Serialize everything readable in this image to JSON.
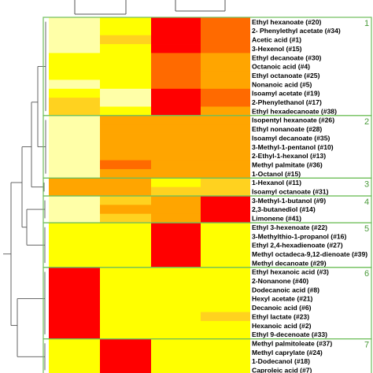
{
  "chart_data": {
    "type": "heatmap",
    "columns": [
      "",
      "",
      "",
      ""
    ],
    "color_scale": {
      "low": "#ffff00",
      "mid_low": "#ffd21f",
      "mid": "#ffa500",
      "mid_high": "#ff6a00",
      "high": "#ff0000",
      "pale": "#ffffa8"
    },
    "cluster_border_color": "#6fbf5a",
    "rows": [
      {
        "label": "Ethyl hexanoate (#20)",
        "values": [
          0.1,
          0.1,
          0.95,
          0.8
        ]
      },
      {
        "label": "2- Phenylethyl acetate (#34)",
        "values": [
          0.1,
          0.1,
          0.95,
          0.8
        ]
      },
      {
        "label": "Acetic acid (#1)",
        "values": [
          0.1,
          0.35,
          0.95,
          0.8
        ]
      },
      {
        "label": "3-Hexenol (#15)",
        "values": [
          0.1,
          0.1,
          0.95,
          0.8
        ]
      },
      {
        "label": "Ethyl decanoate (#30)",
        "values": [
          0.05,
          0.1,
          0.8,
          0.6
        ]
      },
      {
        "label": "Octanoic acid (#4)",
        "values": [
          0.05,
          0.1,
          0.8,
          0.6
        ]
      },
      {
        "label": "Ethyl octanoate (#25)",
        "values": [
          0.05,
          0.1,
          0.8,
          0.6
        ]
      },
      {
        "label": "Nonanoic acid (#5)",
        "values": [
          0.1,
          0.1,
          0.8,
          0.6
        ]
      },
      {
        "label": "Isoamyl acetate (#19)",
        "values": [
          0.1,
          0.05,
          0.95,
          0.8
        ]
      },
      {
        "label": "2-Phenylethanol (#17)",
        "values": [
          0.3,
          0.05,
          0.95,
          0.8
        ]
      },
      {
        "label": "Ethyl hexadecanoate (#38)",
        "values": [
          0.3,
          0.1,
          0.95,
          0.6
        ]
      },
      {
        "label": "Isopentyl hexanoate (#26)",
        "values": [
          0.1,
          0.5,
          0.5,
          0.5
        ]
      },
      {
        "label": "Ethyl nonanoate (#28)",
        "values": [
          0.1,
          0.5,
          0.5,
          0.5
        ]
      },
      {
        "label": "Isoamyl decanoate (#35)",
        "values": [
          0.1,
          0.5,
          0.5,
          0.5
        ]
      },
      {
        "label": "3-Methyl-1-pentanol (#10)",
        "values": [
          0.1,
          0.5,
          0.5,
          0.5
        ]
      },
      {
        "label": "2-Ethyl-1-hexanol (#13)",
        "values": [
          0.1,
          0.5,
          0.5,
          0.5
        ]
      },
      {
        "label": "Methyl palmitate (#36)",
        "values": [
          0.1,
          0.7,
          0.5,
          0.5
        ]
      },
      {
        "label": "1-Octanol (#15)",
        "values": [
          0.1,
          0.5,
          0.5,
          0.5
        ]
      },
      {
        "label": "1-Hexanol (#11)",
        "values": [
          0.5,
          0.5,
          0.05,
          0.3
        ]
      },
      {
        "label": "Isoamyl octanoate (#31)",
        "values": [
          0.5,
          0.5,
          0.3,
          0.3
        ]
      },
      {
        "label": "3-Methyl-1-butanol (#9)",
        "values": [
          0.1,
          0.3,
          0.5,
          0.95
        ]
      },
      {
        "label": "2,3-butanediol (#14)",
        "values": [
          0.1,
          0.5,
          0.5,
          0.95
        ]
      },
      {
        "label": "Limonene (#41)",
        "values": [
          0.1,
          0.3,
          0.5,
          0.95
        ]
      },
      {
        "label": "Ethyl 3-hexenoate (#22)",
        "values": [
          0.1,
          0.1,
          0.95,
          0.1
        ]
      },
      {
        "label": "3-Methylthio-1-propanol (#16)",
        "values": [
          0.1,
          0.1,
          0.95,
          0.1
        ]
      },
      {
        "label": "Ethyl 2,4-hexadienoate (#27)",
        "values": [
          0.1,
          0.1,
          0.95,
          0.1
        ]
      },
      {
        "label": "Methyl octadeca-9,12-dienoate (#39)",
        "values": [
          0.1,
          0.1,
          0.95,
          0.1
        ]
      },
      {
        "label": "Methyl decanoate (#29)",
        "values": [
          0.1,
          0.1,
          0.95,
          0.1
        ]
      },
      {
        "label": "Ethyl hexanoic acid (#3)",
        "values": [
          0.95,
          0.1,
          0.1,
          0.1
        ]
      },
      {
        "label": "2-Nonanone (#40)",
        "values": [
          0.95,
          0.1,
          0.1,
          0.1
        ]
      },
      {
        "label": "Dodecanoic acid (#8)",
        "values": [
          0.95,
          0.1,
          0.1,
          0.1
        ]
      },
      {
        "label": "Hexyl acetate (#21)",
        "values": [
          0.95,
          0.1,
          0.1,
          0.1
        ]
      },
      {
        "label": "Decanoic acid (#6)",
        "values": [
          0.95,
          0.1,
          0.1,
          0.1
        ]
      },
      {
        "label": "Ethyl lactate (#23)",
        "values": [
          0.95,
          0.1,
          0.1,
          0.35
        ]
      },
      {
        "label": "Hexanoic acid (#2)",
        "values": [
          0.95,
          0.1,
          0.1,
          0.1
        ]
      },
      {
        "label": "Ethyl 9-decenoate (#33)",
        "values": [
          0.95,
          0.1,
          0.1,
          0.1
        ]
      },
      {
        "label": "Methyl palmitoleate (#37)",
        "values": [
          0.1,
          0.95,
          0.1,
          0.1
        ]
      },
      {
        "label": "Methyl caprylate (#24)",
        "values": [
          0.1,
          0.95,
          0.1,
          0.1
        ]
      },
      {
        "label": "1-Dodecanol (#18)",
        "values": [
          0.1,
          0.95,
          0.1,
          0.1
        ]
      },
      {
        "label": "Caproleic acid (#7)",
        "values": [
          0.1,
          0.95,
          0.1,
          0.1
        ]
      }
    ],
    "clusters": [
      {
        "label": "1",
        "start": 0,
        "end": 10
      },
      {
        "label": "2",
        "start": 11,
        "end": 17
      },
      {
        "label": "3",
        "start": 18,
        "end": 19
      },
      {
        "label": "4",
        "start": 20,
        "end": 22
      },
      {
        "label": "5",
        "start": 23,
        "end": 27
      },
      {
        "label": "6",
        "start": 28,
        "end": 35
      },
      {
        "label": "7",
        "start": 36,
        "end": 39
      }
    ],
    "pale_cells": [
      [
        0,
        0
      ],
      [
        1,
        0
      ],
      [
        2,
        0
      ],
      [
        3,
        0
      ],
      [
        7,
        0
      ],
      [
        8,
        1
      ],
      [
        9,
        1
      ],
      [
        11,
        0
      ],
      [
        12,
        0
      ],
      [
        13,
        0
      ],
      [
        14,
        0
      ],
      [
        15,
        0
      ],
      [
        16,
        0
      ],
      [
        17,
        0
      ],
      [
        20,
        0
      ],
      [
        21,
        0
      ],
      [
        22,
        0
      ]
    ]
  }
}
